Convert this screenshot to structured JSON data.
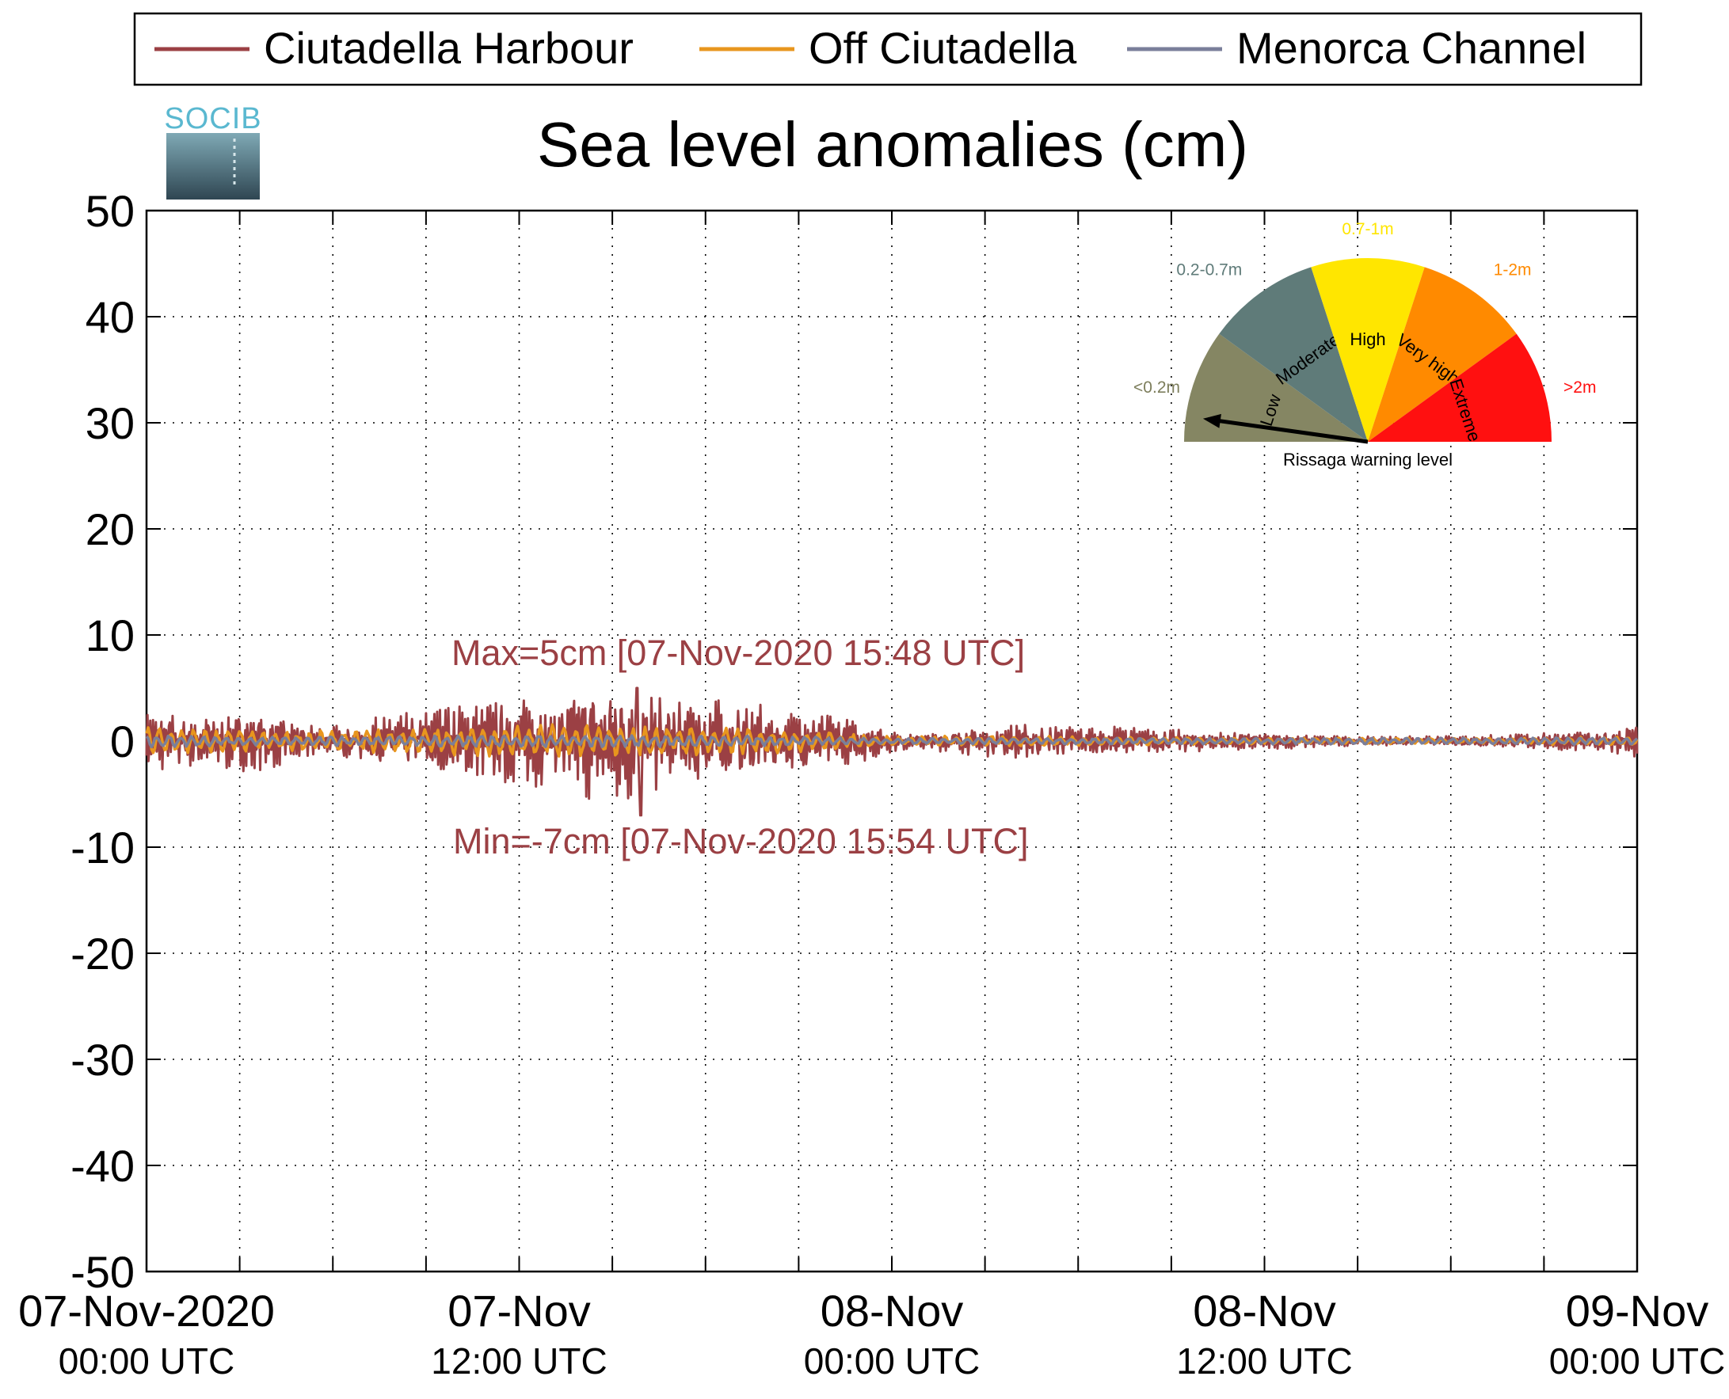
{
  "chart_data": {
    "type": "line",
    "title": "Sea level anomalies (cm)",
    "xlabel": "",
    "ylabel": "",
    "ylim": [
      -50,
      50
    ],
    "yticks": [
      50,
      40,
      30,
      20,
      10,
      0,
      -10,
      -20,
      -30,
      -40,
      -50
    ],
    "xlim_hours": [
      0,
      48
    ],
    "xtick_hours": [
      0,
      3,
      6,
      9,
      12,
      15,
      18,
      21,
      24,
      27,
      30,
      33,
      36,
      39,
      42,
      45,
      48
    ],
    "xtick_labels": [
      {
        "hour": 0,
        "line1": "07-Nov-2020",
        "line2": "00:00 UTC"
      },
      {
        "hour": 12,
        "line1": "07-Nov",
        "line2": "12:00 UTC"
      },
      {
        "hour": 24,
        "line1": "08-Nov",
        "line2": "00:00 UTC"
      },
      {
        "hour": 36,
        "line1": "08-Nov",
        "line2": "12:00 UTC"
      },
      {
        "hour": 48,
        "line1": "09-Nov",
        "line2": "00:00 UTC"
      }
    ],
    "grid": true,
    "legend_position": "top",
    "series": [
      {
        "name": "Ciutadella Harbour",
        "color": "#9b4044",
        "x": [
          0,
          1,
          2,
          3,
          4,
          5,
          6,
          7,
          8,
          9,
          10,
          11,
          12,
          13,
          14,
          15,
          16,
          17,
          18,
          19,
          20,
          21,
          22,
          23,
          24,
          25,
          26,
          27,
          28,
          29,
          30,
          31,
          32,
          33,
          34,
          35,
          36,
          37,
          38,
          39,
          40,
          41,
          42,
          43,
          44,
          45,
          46,
          47,
          48
        ],
        "amplitude": [
          2.5,
          2.6,
          2.4,
          2.7,
          2.3,
          1.5,
          1.3,
          1.8,
          2.2,
          2.6,
          3.0,
          3.4,
          3.9,
          4.2,
          4.6,
          5.5,
          4.6,
          4.0,
          3.6,
          3.2,
          2.9,
          2.6,
          2.3,
          1.8,
          0.9,
          0.7,
          1.0,
          1.3,
          1.5,
          1.4,
          1.3,
          1.2,
          1.1,
          1.0,
          0.9,
          0.8,
          0.7,
          0.6,
          0.5,
          0.4,
          0.4,
          0.4,
          0.4,
          0.5,
          0.6,
          0.7,
          0.8,
          1.0,
          1.6
        ],
        "stats": {
          "max": 5,
          "min": -7
        }
      },
      {
        "name": "Off Ciutadella",
        "color": "#e8961e",
        "x": [
          0,
          4,
          8,
          12,
          16,
          20,
          24,
          28,
          32,
          36,
          40,
          44,
          48
        ],
        "amplitude": [
          1.4,
          0.9,
          1.2,
          1.6,
          1.5,
          1.2,
          0.5,
          0.5,
          0.4,
          0.3,
          0.3,
          0.3,
          0.5
        ]
      },
      {
        "name": "Menorca Channel",
        "color": "#7a7f9a",
        "x": [
          0,
          4,
          8,
          12,
          16,
          20,
          24,
          28,
          32,
          36,
          40,
          44,
          48
        ],
        "amplitude": [
          0.6,
          0.4,
          0.5,
          0.6,
          0.6,
          0.5,
          0.3,
          0.3,
          0.3,
          0.3,
          0.3,
          0.3,
          0.4
        ]
      }
    ],
    "annotations": {
      "max_text": "Max=5cm [07-Nov-2020 15:48 UTC]",
      "min_text": "Min=-7cm [07-Nov-2020 15:54 UTC]",
      "color": "#9b4044"
    }
  },
  "logo": {
    "text": "SOCIB"
  },
  "gauge": {
    "caption": "Rissaga warning level",
    "needle_level": "Low",
    "sectors": [
      {
        "name": "Low",
        "range": "<0.2m",
        "color": "#858663",
        "range_color": "#7d7e5c"
      },
      {
        "name": "Moderate",
        "range": "0.2-0.7m",
        "color": "#5f7b79",
        "range_color": "#5f7b79"
      },
      {
        "name": "High",
        "range": "0.7-1m",
        "color": "#ffe600",
        "range_color": "#ffe600"
      },
      {
        "name": "Very high",
        "range": "1-2m",
        "color": "#ff8a00",
        "range_color": "#ff8a00"
      },
      {
        "name": "Extreme",
        "range": ">2m",
        "color": "#ff1010",
        "range_color": "#ff1010"
      }
    ]
  }
}
